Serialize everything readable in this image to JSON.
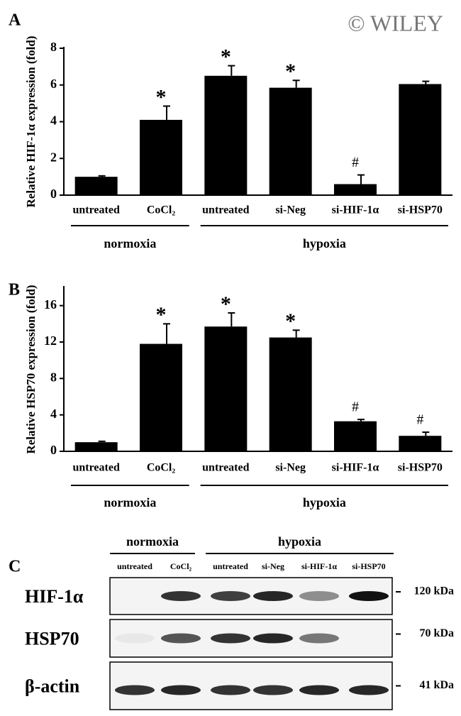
{
  "chart_data": [
    {
      "type": "bar",
      "panel": "A",
      "ylabel": "Relative HIF-1α expression (fold)",
      "categories": [
        "untreated",
        "CoCl₂",
        "untreated",
        "si-Neg",
        "si-HIF-1α",
        "si-HSP70"
      ],
      "values": [
        1.0,
        4.1,
        6.5,
        5.85,
        0.6,
        6.05
      ],
      "errors": [
        0.05,
        0.75,
        0.55,
        0.4,
        0.5,
        0.15
      ],
      "annotations": [
        null,
        "*",
        "*",
        "*",
        "#",
        null
      ],
      "groups": [
        "normoxia",
        "hypoxia"
      ],
      "color": "#000000",
      "ylim": [
        0,
        8
      ],
      "yticks": [
        0,
        2,
        4,
        6,
        8
      ]
    },
    {
      "type": "bar",
      "panel": "B",
      "ylabel": "Relative HSP70 expression (fold)",
      "categories": [
        "untreated",
        "CoCl₂",
        "untreated",
        "si-Neg",
        "si-HIF-1α",
        "si-HSP70"
      ],
      "values": [
        1.0,
        11.8,
        13.7,
        12.5,
        3.3,
        1.7
      ],
      "errors": [
        0.1,
        2.2,
        1.5,
        0.8,
        0.2,
        0.4
      ],
      "annotations": [
        null,
        "*",
        "*",
        "*",
        "#",
        "#"
      ],
      "groups": [
        "normoxia",
        "hypoxia"
      ],
      "color": "#000000",
      "ylim": [
        0,
        18
      ],
      "yticks": [
        0,
        4,
        8,
        12,
        16
      ]
    }
  ],
  "watermark": "© WILEY",
  "blot": {
    "panel": "C",
    "groups": [
      "normoxia",
      "hypoxia"
    ],
    "lanes": [
      "untreated",
      "CoCl₂",
      "untreated",
      "si-Neg",
      "si-HIF-1α",
      "si-HSP70"
    ],
    "rows": [
      {
        "label": "HIF-1α",
        "size": "120 kDa"
      },
      {
        "label": "HSP70",
        "size": "70 kDa"
      },
      {
        "label": "β-actin",
        "size": "41 kDa"
      }
    ]
  }
}
